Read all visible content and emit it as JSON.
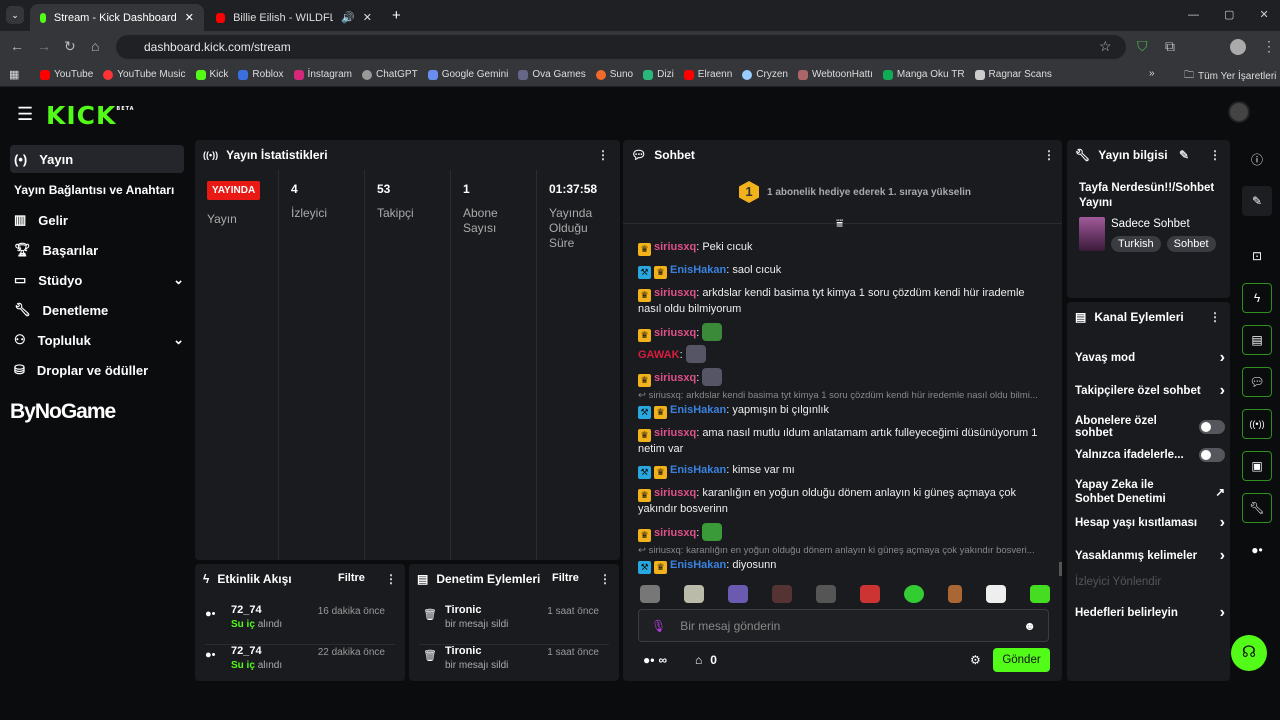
{
  "browser": {
    "tabs": [
      {
        "title": "Stream - Kick Dashboard"
      },
      {
        "title": "Billie Eilish - WILDFLOWER ("
      }
    ],
    "url": "dashboard.kick.com/stream",
    "bookmarks": [
      "YouTube",
      "YouTube Music",
      "Kick",
      "Roblox",
      "İnstagram",
      "ChatGPT",
      "Google Gemini",
      "Ova Games",
      "Suno",
      "Dizi",
      "Elraenn",
      "Cryzen",
      "WebtoonHattı",
      "Manga Oku TR",
      "Ragnar Scans"
    ],
    "all_bookmarks": "Tüm Yer İşaretleri"
  },
  "logo": "KICK",
  "logo_badge": "BETA",
  "watermark": "ByNoGame",
  "sidebar": {
    "items": [
      {
        "label": "Yayın"
      },
      {
        "label": "Yayın Bağlantısı ve Anahtarı"
      },
      {
        "label": "Gelir"
      },
      {
        "label": "Başarılar"
      },
      {
        "label": "Stüdyo"
      },
      {
        "label": "Denetleme"
      },
      {
        "label": "Topluluk"
      },
      {
        "label": "Droplar ve ödüller"
      }
    ]
  },
  "stats": {
    "title": "Yayın İstatistikleri",
    "live_badge": "YAYINDA",
    "live_label": "Yayın",
    "items": [
      {
        "value": "4",
        "label": "İzleyici"
      },
      {
        "value": "53",
        "label": "Takipçi"
      },
      {
        "value": "1",
        "label": "Abone Sayısı"
      },
      {
        "value": "01:37:58",
        "label": "Yayında Olduğu Süre"
      }
    ]
  },
  "activity": {
    "title": "Etkinlik Akışı",
    "filter": "Filtre",
    "items": [
      {
        "user": "72_74",
        "reward": "Su iç",
        "action": "alındı",
        "time": "16 dakika önce"
      },
      {
        "user": "72_74",
        "reward": "Su iç",
        "action": "alındı",
        "time": "22 dakika önce"
      }
    ]
  },
  "modlog": {
    "title": "Denetim Eylemleri",
    "filter": "Filtre",
    "items": [
      {
        "user": "Tironic",
        "action": "bir mesajı sildi",
        "time": "1 saat önce"
      },
      {
        "user": "Tironic",
        "action": "bir mesajı sildi",
        "time": "1 saat önce"
      }
    ]
  },
  "chat": {
    "title": "Sohbet",
    "gift_rank": "1",
    "gift_text": "1 abonelik hediye ederek 1. sıraya yükselin",
    "messages": [
      {
        "user": "siriusxq",
        "text": "Peki cıcuk"
      },
      {
        "user": "EnisHakan",
        "text": "saol cıcuk"
      },
      {
        "user": "siriusxq",
        "text": "arkdslar kendi basima tyt kimya 1 soru çözdüm kendi hür irademle nasıl oldu bilmiyorum"
      },
      {
        "user": "siriusxq",
        "text": ""
      },
      {
        "user": "GAWAK",
        "text": ""
      },
      {
        "user": "siriusxq",
        "text": ""
      },
      {
        "reply": "siriusxq: arkdslar kendi basima tyt kimya 1 soru çözdüm kendi hür iredemle nasıl oldu bilmi..."
      },
      {
        "user": "EnisHakan",
        "text": "yapmışın bi çılgınlık"
      },
      {
        "user": "siriusxq",
        "text": "ama nasıl mutlu ıldum anlatamam artık fulleyeceğimi düsünüyorum 1 netim var"
      },
      {
        "user": "EnisHakan",
        "text": "kimse var mı"
      },
      {
        "user": "siriusxq",
        "text": "karanlığın en yoğun olduğu dönem anlayın ki güneş açmaya çok yakındır bosverinn"
      },
      {
        "user": "siriusxq",
        "text": ""
      },
      {
        "reply": "siriusxq: karanlığın en yoğun olduğu dönem anlayın ki güneş açmaya çok yakındır bosveri..."
      },
      {
        "user": "EnisHakan",
        "text": "diyosunn"
      }
    ],
    "placeholder": "Bir mesaj gönderin",
    "points": "∞",
    "store_count": "0",
    "send": "Gönder"
  },
  "info": {
    "title": "Yayın bilgisi",
    "stream_title": "Tayfa Nerdesün!!/Sohbet Yayını",
    "category": "Sadece Sohbet",
    "tags": [
      "Turkish",
      "Sohbet"
    ]
  },
  "channel": {
    "title": "Kanal Eylemleri",
    "items": [
      {
        "label": "Yavaş mod",
        "type": "chevron"
      },
      {
        "label": "Takipçilere özel sohbet",
        "type": "chevron"
      },
      {
        "label": "Abonelere özel sohbet",
        "type": "toggle",
        "on": false
      },
      {
        "label": "Yalnızca ifadelerle...",
        "type": "toggle",
        "on": false
      },
      {
        "label": "Yapay Zeka ile Sohbet Denetimi",
        "type": "external"
      },
      {
        "label": "Hesap yaşı kısıtlaması",
        "type": "chevron"
      },
      {
        "label": "Yasaklanmış kelimeler",
        "type": "chevron"
      },
      {
        "label": "İzleyici Yönlendir",
        "type": "disabled"
      },
      {
        "label": "Hedefleri belirleyin",
        "type": "chevron"
      }
    ]
  },
  "colors": {
    "accent": "#53fc18",
    "live": "#e91916",
    "panel": "#191b1f"
  }
}
